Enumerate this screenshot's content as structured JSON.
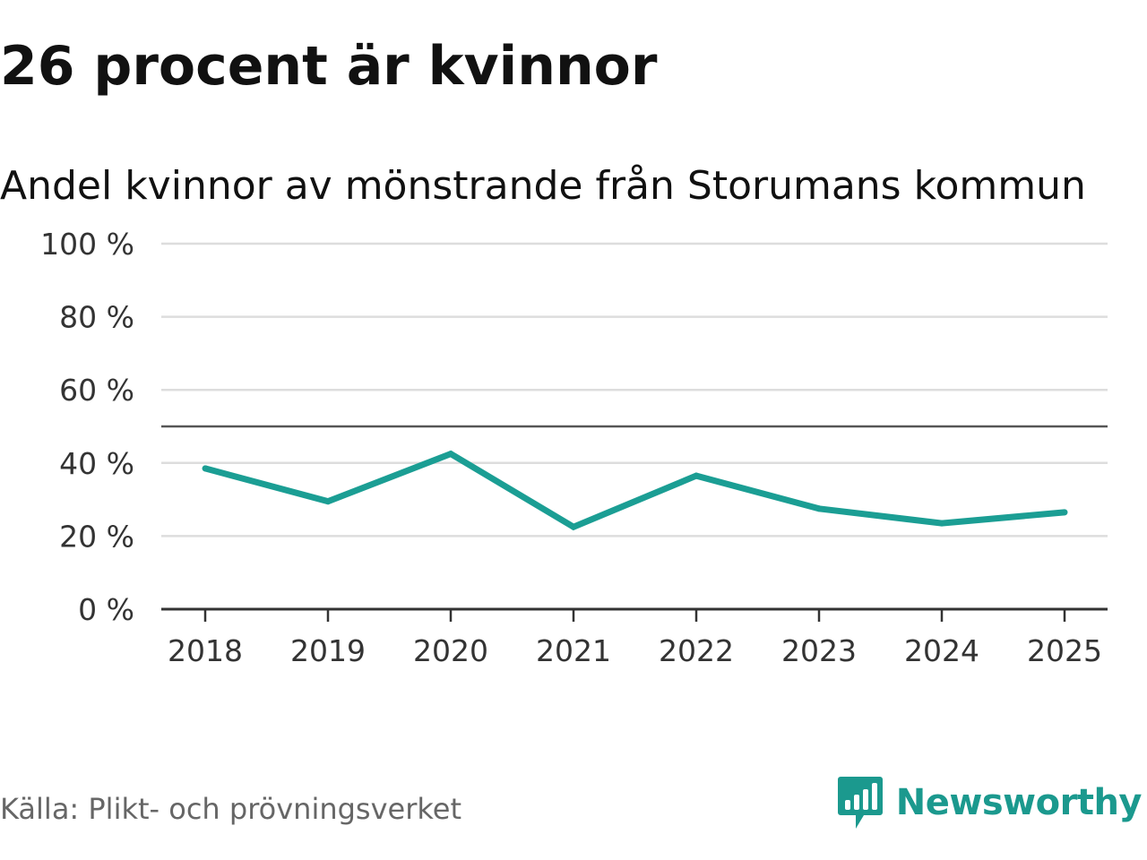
{
  "title": "26 procent är kvinnor",
  "subtitle": "Andel kvinnor av mönstrande från Storumans kommun",
  "source": "Källa: Plikt- och prövningsverket",
  "brand": "Newsworthy",
  "colors": {
    "line": "#1b9e94",
    "brand": "#1b998e",
    "grid": "#dddddd",
    "axis": "#333333",
    "reference": "#555555"
  },
  "chart_data": {
    "type": "line",
    "title": "26 procent är kvinnor",
    "subtitle": "Andel kvinnor av mönstrande från Storumans kommun",
    "xlabel": "",
    "ylabel": "",
    "categories": [
      "2018",
      "2019",
      "2020",
      "2021",
      "2022",
      "2023",
      "2024",
      "2025"
    ],
    "series": [
      {
        "name": "Andel kvinnor",
        "values": [
          38.5,
          29.5,
          42.5,
          22.5,
          36.5,
          27.5,
          23.5,
          26.5
        ]
      }
    ],
    "ylim": [
      0,
      100
    ],
    "yticks": [
      0,
      20,
      40,
      60,
      80,
      100
    ],
    "ytick_labels": [
      "0 %",
      "20 %",
      "40 %",
      "60 %",
      "80 %",
      "100 %"
    ],
    "reference_line": 50,
    "grid": true
  }
}
